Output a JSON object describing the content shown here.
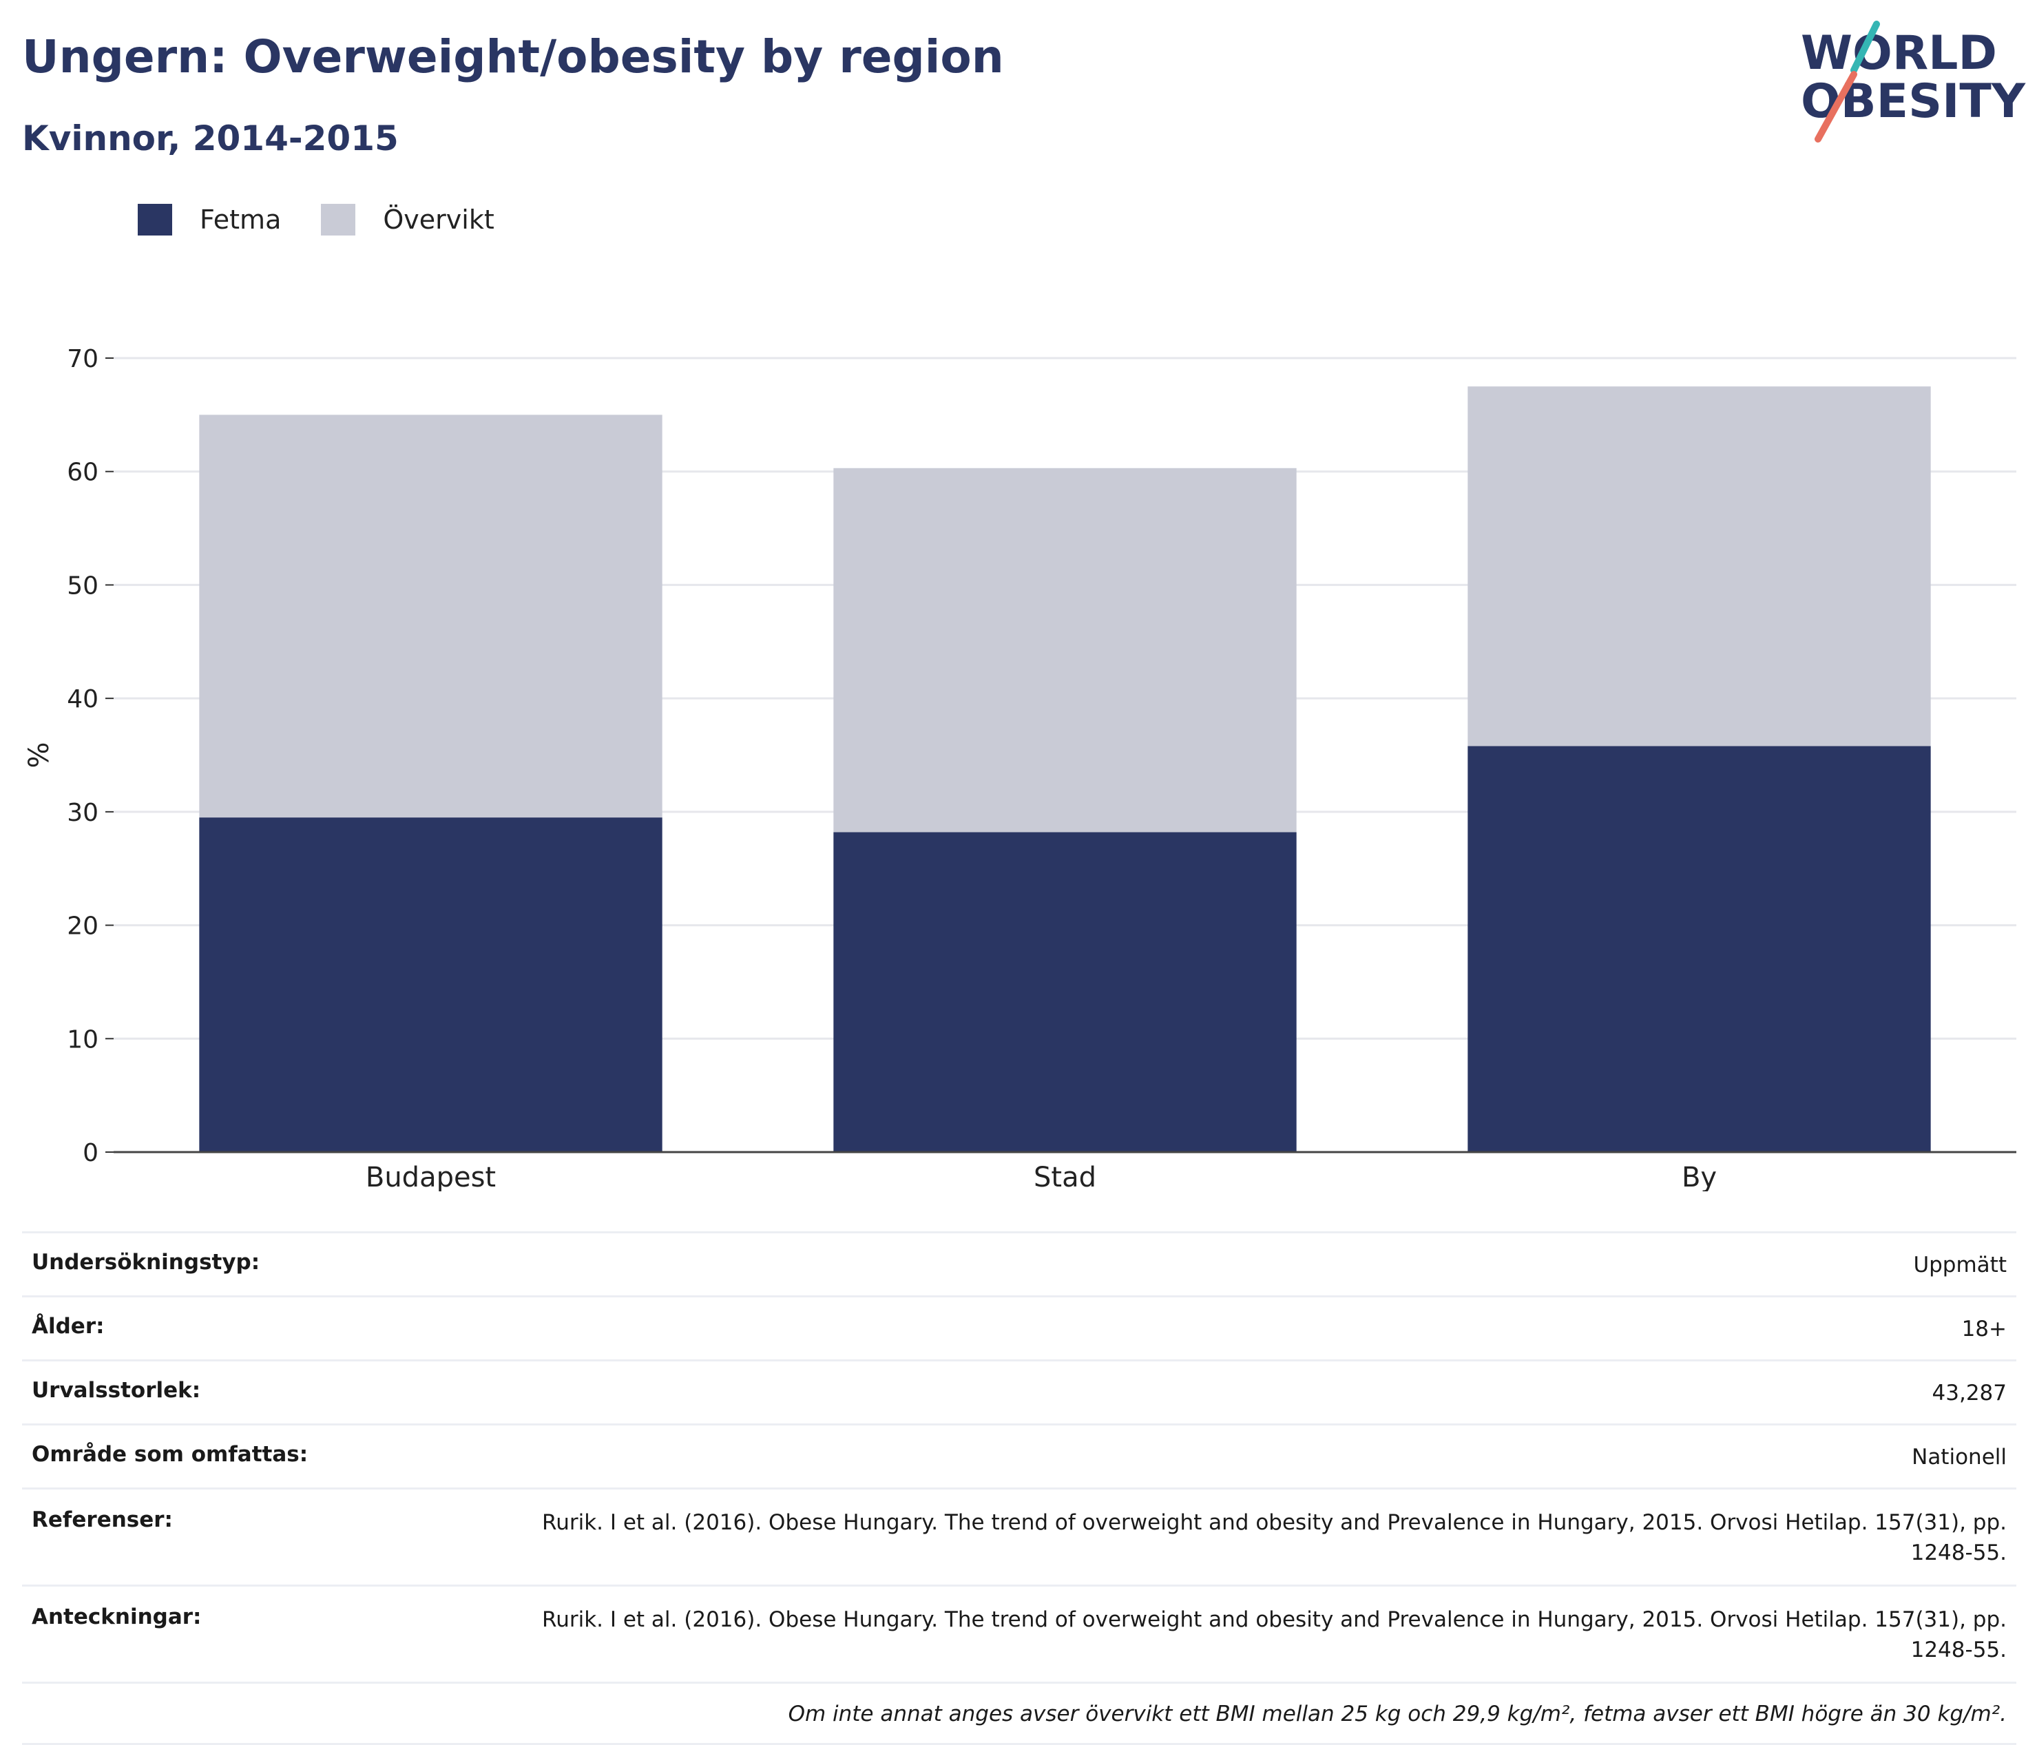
{
  "header": {
    "title": "Ungern: Overweight/obesity by region",
    "subtitle": "Kvinnor, 2014-2015"
  },
  "logo": {
    "line1": "WORLD",
    "line2": "OBESITY",
    "colors": {
      "text": "#2a3663",
      "slash_top": "#35b6b4",
      "slash_bottom": "#e8705f"
    }
  },
  "legend": {
    "items": [
      {
        "label": "Fetma",
        "color": "#2a3663"
      },
      {
        "label": "Övervikt",
        "color": "#c9cbd6"
      }
    ]
  },
  "chart_data": {
    "type": "bar",
    "stacked": true,
    "categories": [
      "Budapest",
      "Stad",
      "By"
    ],
    "series": [
      {
        "name": "Fetma",
        "color": "#2a3663",
        "values": [
          29.5,
          28.2,
          35.8
        ]
      },
      {
        "name": "Övervikt",
        "color": "#c9cbd6",
        "values": [
          35.5,
          32.1,
          31.7
        ]
      }
    ],
    "totals": [
      65.0,
      60.3,
      67.5
    ],
    "ylabel": "%",
    "ylim": [
      0,
      70
    ],
    "yticks": [
      0,
      10,
      20,
      30,
      40,
      50,
      60,
      70
    ],
    "grid": true,
    "legend_position": "top-left"
  },
  "meta": {
    "rows": [
      {
        "label": "Undersökningstyp:",
        "value": "Uppmätt"
      },
      {
        "label": "Ålder:",
        "value": "18+"
      },
      {
        "label": "Urvalsstorlek:",
        "value": "43,287"
      },
      {
        "label": "Område som omfattas:",
        "value": "Nationell"
      },
      {
        "label": "Referenser:",
        "value": "Rurik. I et al. (2016). Obese Hungary. The trend of overweight and obesity and Prevalence in Hungary, 2015. Orvosi Hetilap. 157(31), pp. 1248-55."
      },
      {
        "label": "Anteckningar:",
        "value": "Rurik. I et al. (2016). Obese Hungary. The trend of overweight and obesity and Prevalence in Hungary, 2015. Orvosi Hetilap. 157(31), pp. 1248-55."
      }
    ],
    "footnote": "Om inte annat anges avser övervikt ett BMI mellan 25 kg och 29,9 kg/m², fetma avser ett BMI högre än 30 kg/m²."
  }
}
